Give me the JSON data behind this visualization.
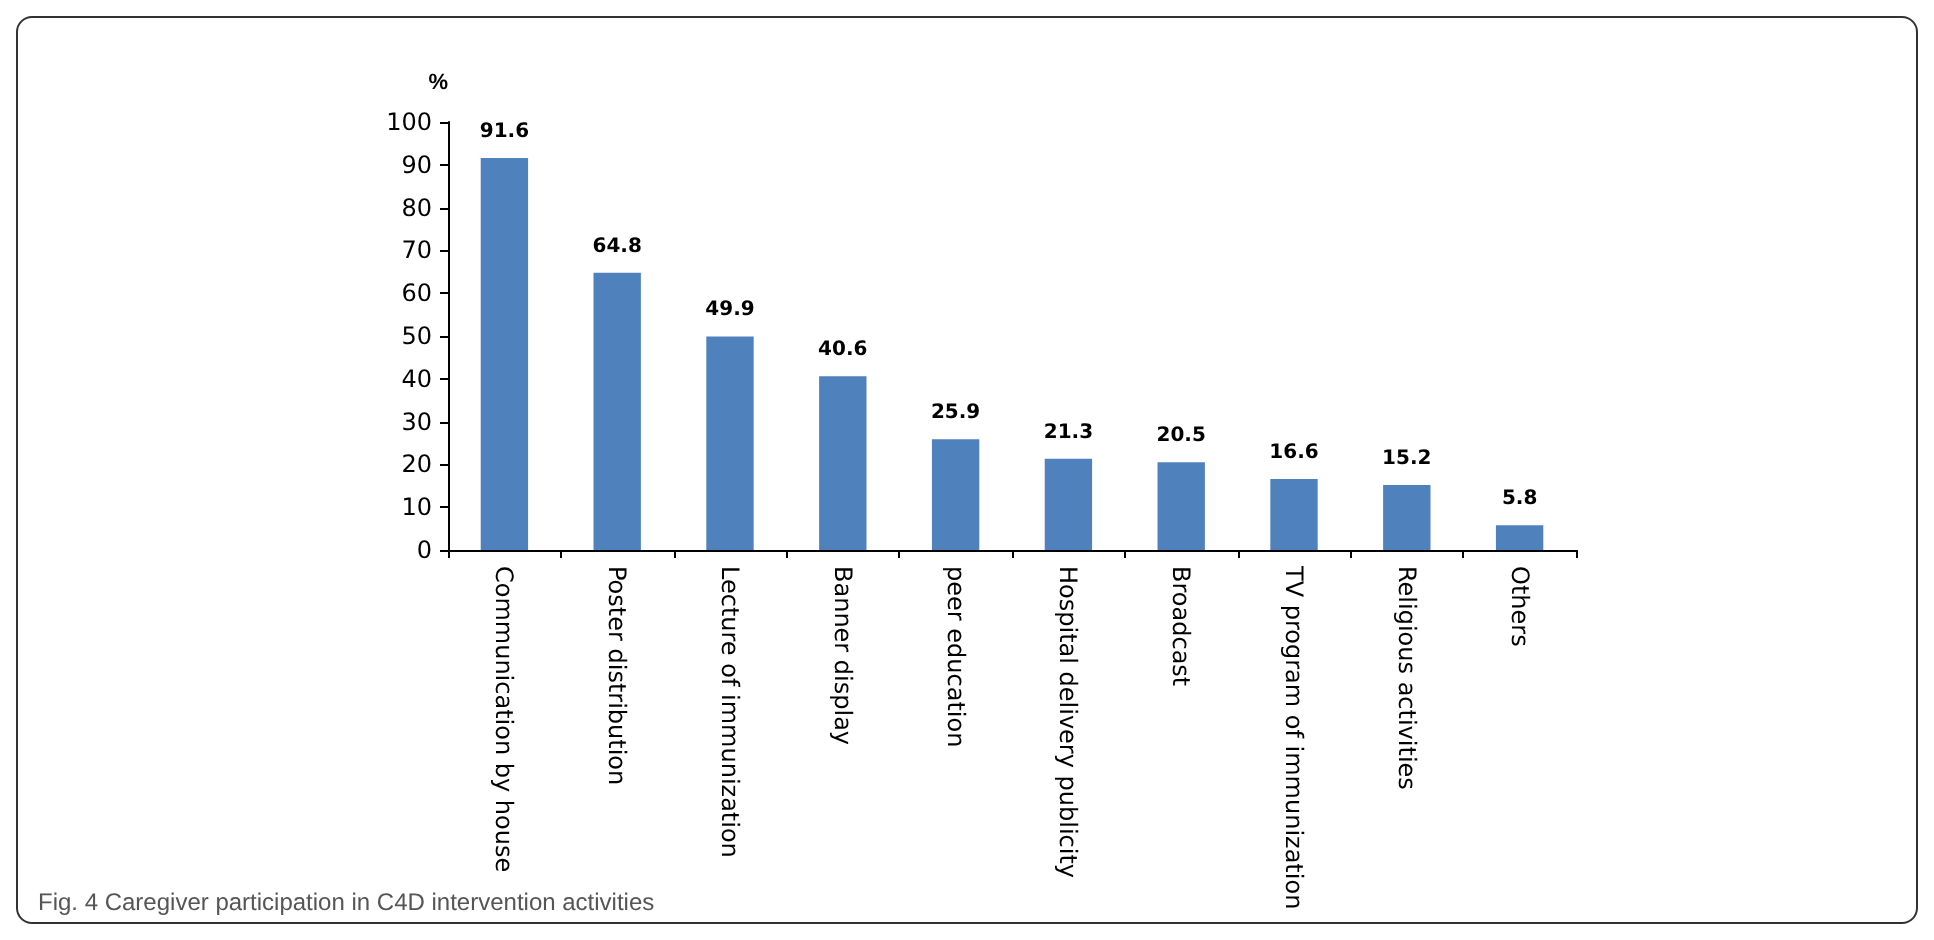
{
  "chart_data": {
    "type": "bar",
    "ylabel": "%",
    "categories": [
      "Communication by house",
      "Poster distribution",
      "Lecture of immunization",
      "Banner display",
      "peer education",
      "Hospital delivery publicity",
      "Broadcast",
      "TV program of immunization",
      "Religious activities",
      "Others"
    ],
    "values": [
      91.6,
      64.8,
      49.9,
      40.6,
      25.9,
      21.3,
      20.5,
      16.6,
      15.2,
      5.8
    ],
    "color": "#4f81bd",
    "ylim": [
      0,
      100
    ],
    "yticks": [
      0,
      10,
      20,
      30,
      40,
      50,
      60,
      70,
      80,
      90,
      100
    ],
    "data_labels": true,
    "annotations": [
      "Fig. 4 Caregiver participation in C4D intervention activities"
    ]
  }
}
